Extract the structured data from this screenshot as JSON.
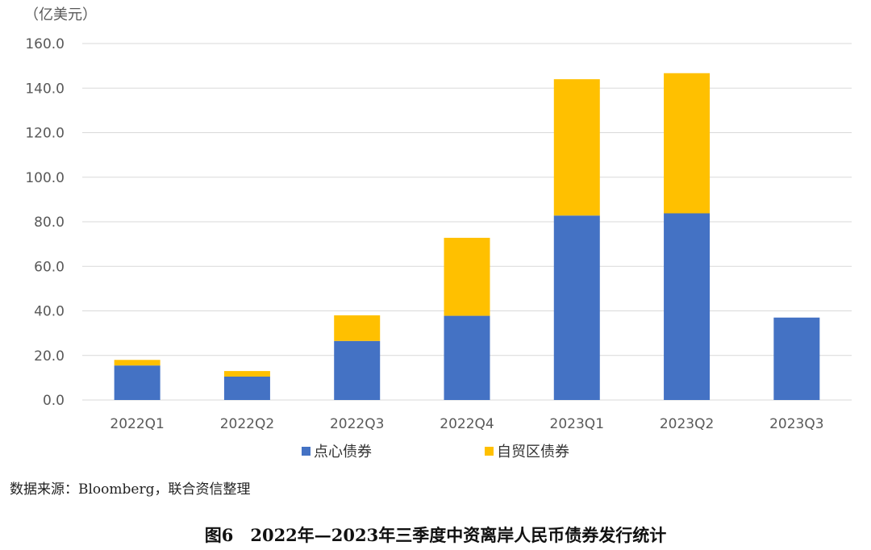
{
  "colors": {
    "dianxin": "#4472C4",
    "ziyouqu": "#FFC000",
    "grid": "#d9d9d9",
    "axis_text": "#595959"
  },
  "chart_data": {
    "type": "bar",
    "stacked": true,
    "unit_label": "（亿美元）",
    "categories": [
      "2022Q1",
      "2022Q2",
      "2022Q3",
      "2022Q4",
      "2023Q1",
      "2023Q2",
      "2023Q3"
    ],
    "series": [
      {
        "name": "点心债券",
        "values": [
          15.5,
          10.5,
          26.5,
          37.8,
          82.8,
          83.8,
          37.0
        ]
      },
      {
        "name": "自贸区债券",
        "values": [
          2.5,
          2.5,
          11.5,
          35.0,
          61.2,
          62.9,
          0
        ]
      }
    ],
    "ylim": [
      0,
      160
    ],
    "yticks": [
      "0.0",
      "20.0",
      "40.0",
      "60.0",
      "80.0",
      "100.0",
      "120.0",
      "140.0",
      "160.0"
    ],
    "grid": true,
    "legend_position": "bottom"
  },
  "source_text": "数据来源：Bloomberg，联合资信整理",
  "caption": "图6　2022年—2023年三季度中资离岸人民币债券发行统计"
}
